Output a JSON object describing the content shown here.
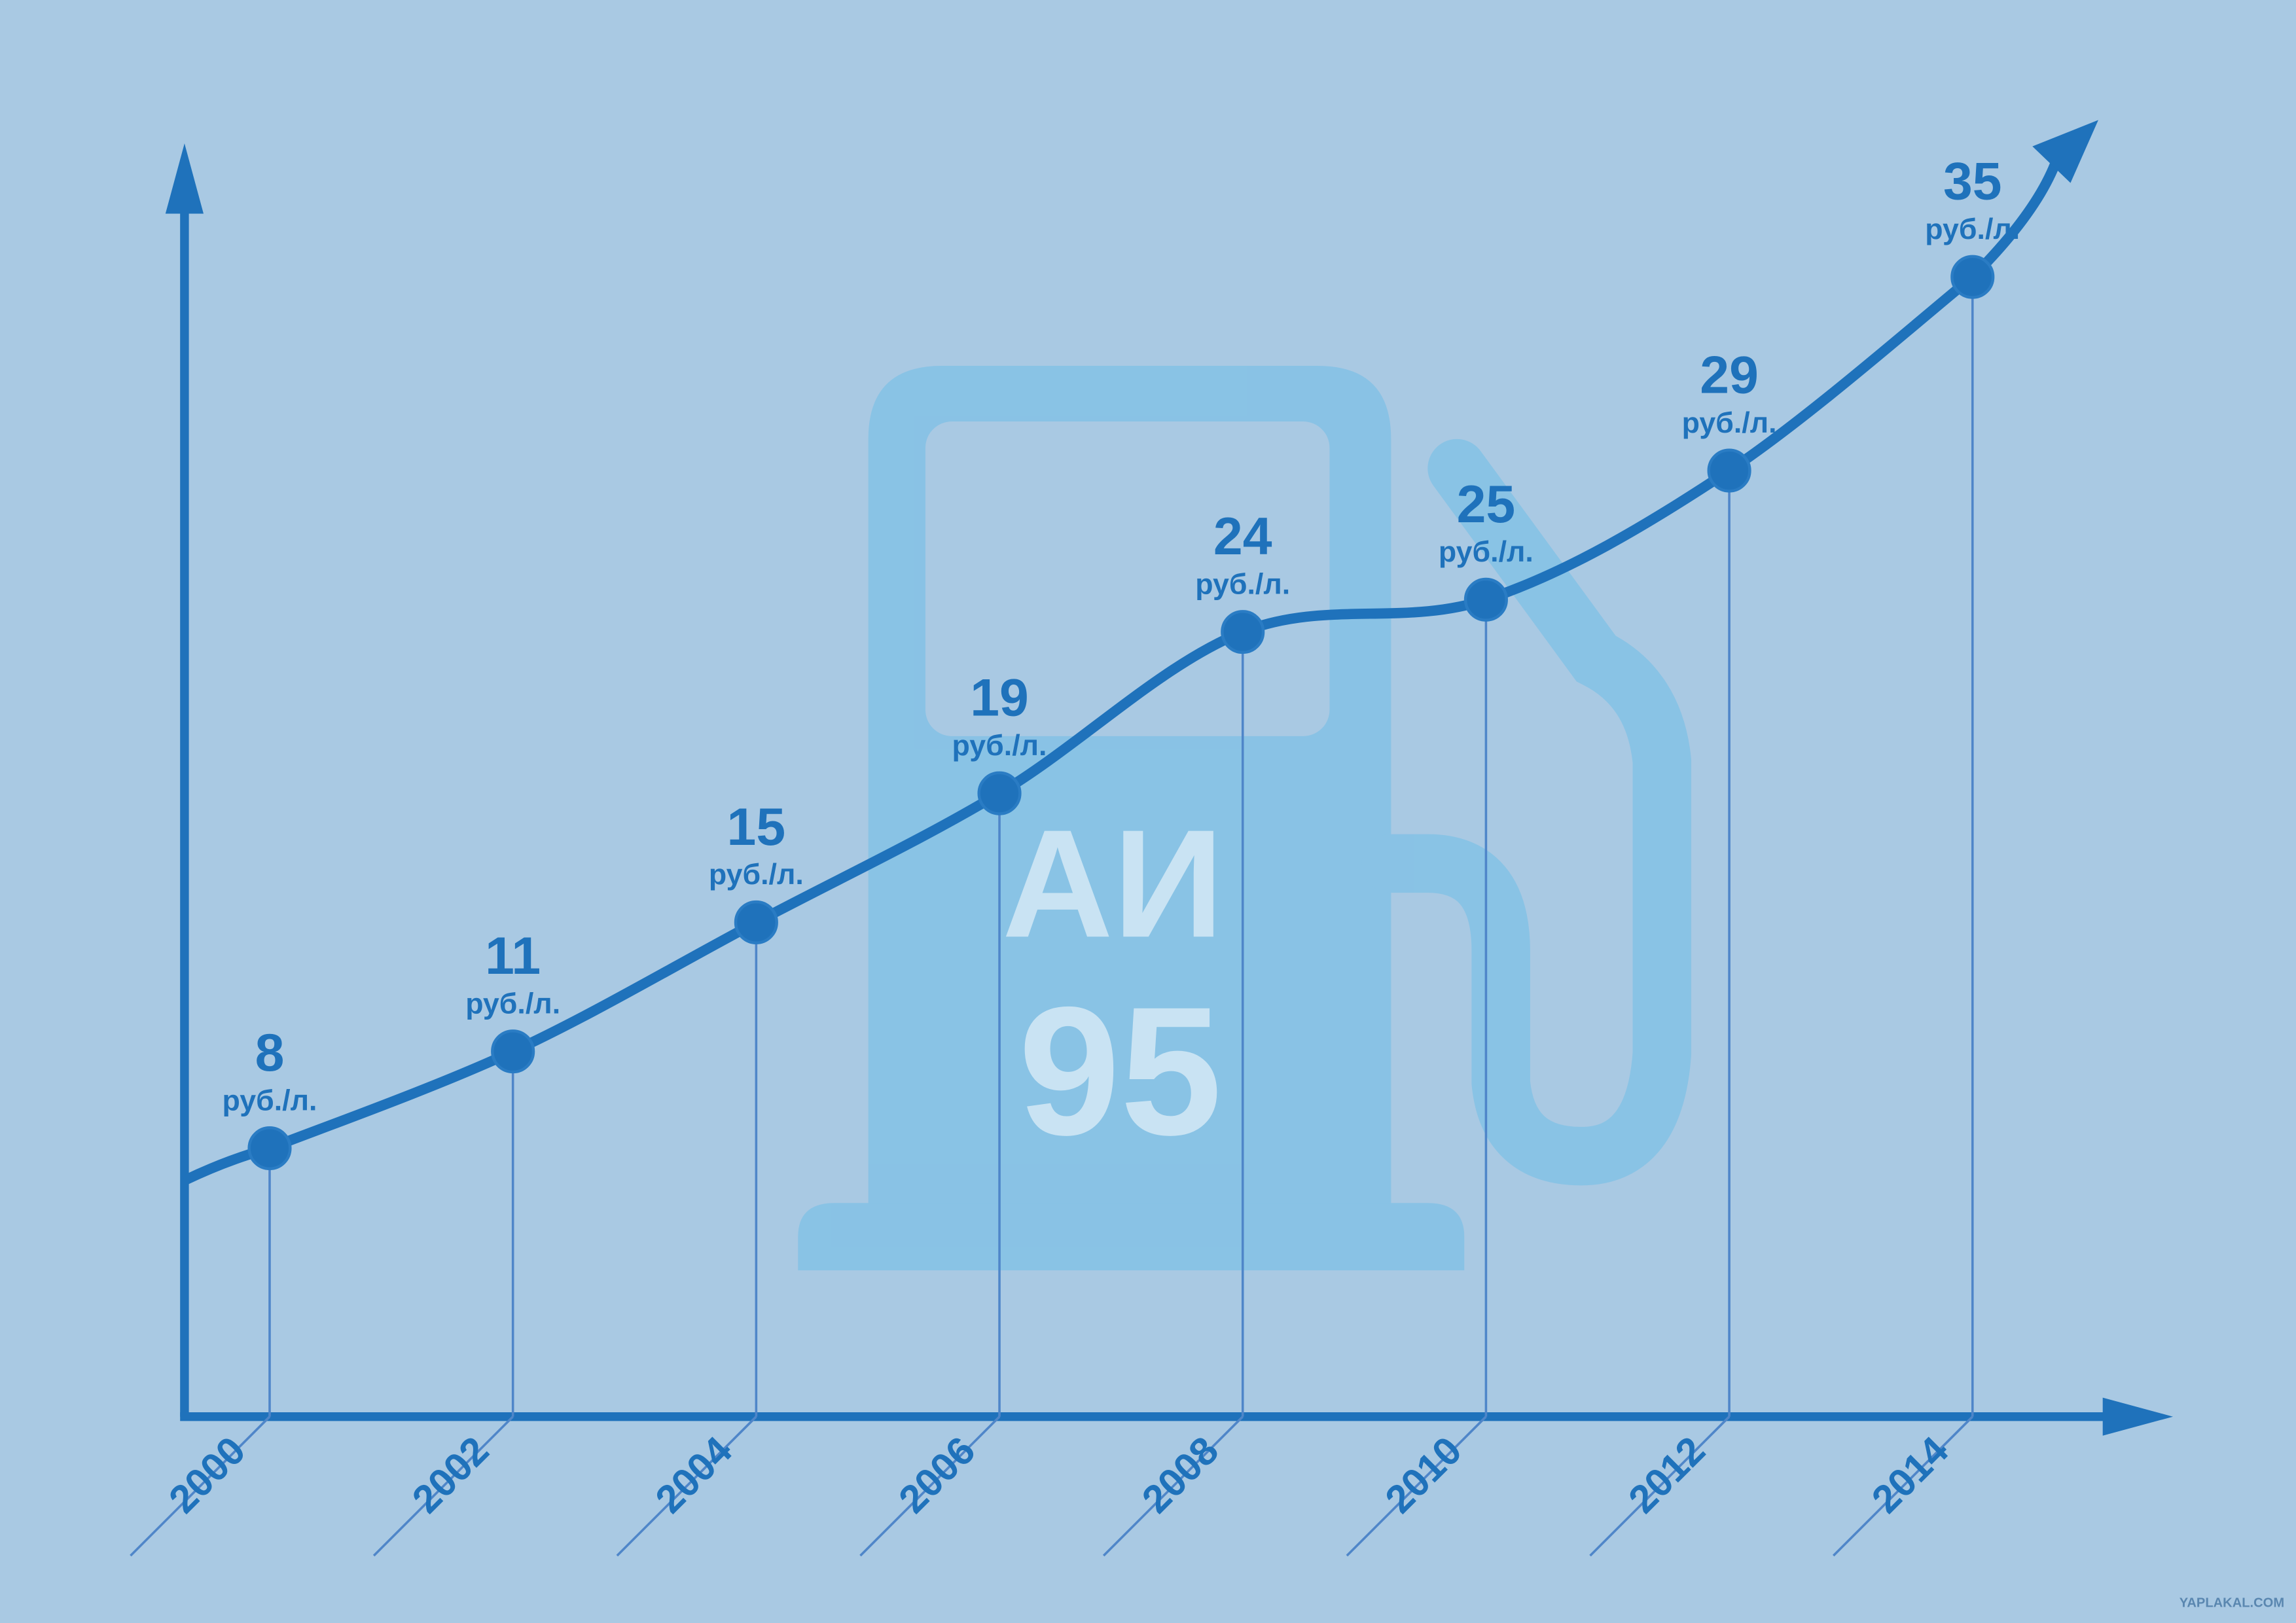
{
  "chart_data": {
    "type": "line",
    "x": [
      2000,
      2002,
      2004,
      2006,
      2008,
      2010,
      2012,
      2014
    ],
    "series": [
      {
        "values": [
          8,
          11,
          15,
          19,
          24,
          25,
          29,
          35
        ],
        "color": "#1f72bb"
      }
    ],
    "unit": "руб./л.",
    "xlim": [
      1999.3,
      2015.6
    ],
    "ylim": [
      0,
      40
    ]
  },
  "icon": {
    "lines": [
      "АИ",
      "95"
    ]
  },
  "watermark": "YAPLAKAL.COM"
}
